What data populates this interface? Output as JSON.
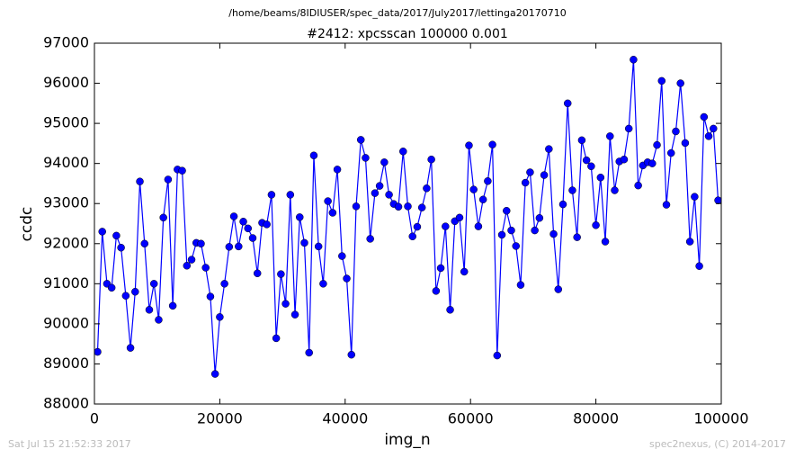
{
  "chart_data": {
    "type": "line",
    "title": "/home/beams/8IDIUSER/spec_data/2017/July2017/lettinga20170710",
    "subtitle": "#2412: xpcsscan 100000 0.001",
    "xlabel": "img_n",
    "ylabel": "ccdc",
    "footer_left": "Sat Jul 15 21:52:33 2017",
    "footer_right": "spec2nexus, (C) 2014-2017",
    "xlim": [
      0,
      100000
    ],
    "xticks": [
      0,
      20000,
      40000,
      60000,
      80000,
      100000
    ],
    "ylim": [
      88000,
      97000
    ],
    "yticks": [
      88000,
      89000,
      90000,
      91000,
      92000,
      93000,
      94000,
      95000,
      96000,
      97000
    ],
    "grid": false,
    "x": [
      500,
      1250,
      2000,
      2750,
      3500,
      4250,
      5000,
      5750,
      6500,
      7250,
      8000,
      8750,
      9500,
      10250,
      11000,
      11750,
      12500,
      13250,
      14000,
      14750,
      15500,
      16250,
      17000,
      17750,
      18500,
      19250,
      20000,
      20750,
      21500,
      22250,
      23000,
      23750,
      24500,
      25250,
      26000,
      26750,
      27500,
      28250,
      29000,
      29750,
      30500,
      31250,
      32000,
      32750,
      33500,
      34250,
      35000,
      35750,
      36500,
      37250,
      38000,
      38750,
      39500,
      40250,
      41000,
      41750,
      42500,
      43250,
      44000,
      44750,
      45500,
      46250,
      47000,
      47750,
      48500,
      49250,
      50000,
      50750,
      51500,
      52250,
      53000,
      53750,
      54500,
      55250,
      56000,
      56750,
      57500,
      58250,
      59000,
      59750,
      60500,
      61250,
      62000,
      62750,
      63500,
      64250,
      65000,
      65750,
      66500,
      67250,
      68000,
      68750,
      69500,
      70250,
      71000,
      71750,
      72500,
      73250,
      74000,
      74750,
      75500,
      76250,
      77000,
      77750,
      78500,
      79250,
      80000,
      80750,
      81500,
      82250,
      83000,
      83750,
      84500,
      85250,
      86000,
      86750,
      87500,
      88250,
      89000,
      89750,
      90500,
      91250,
      92000,
      92750,
      93500,
      94250,
      95000,
      95750,
      96500,
      97250,
      98000,
      98750,
      99500
    ],
    "series": [
      {
        "name": "ccdc",
        "color": "#0000ff",
        "values": [
          89300,
          92300,
          91000,
          90900,
          92200,
          91900,
          90700,
          89400,
          90800,
          93550,
          92000,
          90350,
          91000,
          90100,
          92650,
          93600,
          90450,
          93850,
          93820,
          91450,
          91600,
          92020,
          92000,
          91400,
          90680,
          88750,
          90170,
          91000,
          91920,
          92680,
          91930,
          92550,
          92380,
          92140,
          91260,
          92520,
          92480,
          93220,
          89640,
          91240,
          90500,
          93220,
          90230,
          92660,
          92020,
          89280,
          94200,
          91930,
          91000,
          93060,
          92770,
          93850,
          91690,
          91130,
          89230,
          92930,
          94590,
          94140,
          92120,
          93260,
          93440,
          94030,
          93220,
          92990,
          92920,
          94300,
          92930,
          92180,
          92420,
          92900,
          93380,
          94100,
          90820,
          91390,
          92430,
          90350,
          92560,
          92650,
          91300,
          94450,
          93350,
          92430,
          93100,
          93560,
          94470,
          89210,
          92220,
          92820,
          92330,
          91940,
          90970,
          93520,
          93780,
          92330,
          92640,
          93710,
          94360,
          92240,
          90860,
          92980,
          95500,
          93330,
          92160,
          94580,
          94080,
          93930,
          92460,
          93650,
          92050,
          94680,
          93330,
          94050,
          94100,
          94870,
          96590,
          93450,
          93950,
          94030,
          94000,
          94460,
          96060,
          92970,
          94260,
          94800,
          96000,
          94510,
          92050,
          93170,
          91440,
          95160,
          94680,
          94870,
          93080
        ]
      }
    ]
  }
}
